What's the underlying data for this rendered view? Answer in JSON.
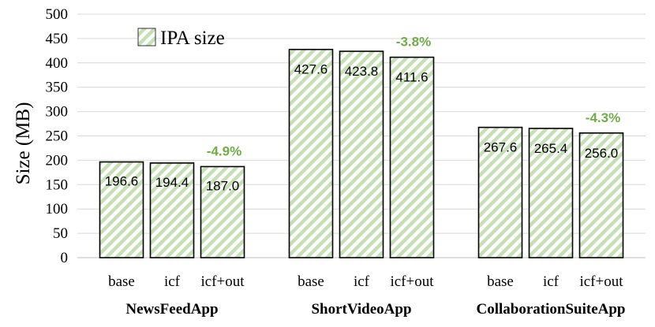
{
  "chart_data": {
    "type": "bar",
    "title": "",
    "xlabel": "",
    "ylabel": "Size (MB)",
    "ylim": [
      0,
      500
    ],
    "yticks": [
      0,
      50,
      100,
      150,
      200,
      250,
      300,
      350,
      400,
      450,
      500
    ],
    "grid": "horizontal",
    "legend": {
      "position": "top-left",
      "entries": [
        "IPA size"
      ]
    },
    "colors": {
      "bar_fill": "#ffffff",
      "hatch": "#c5e0b4",
      "bar_stroke": "#000000",
      "annotation": "#70ad47",
      "grid": "#d9d9d9"
    },
    "groups": [
      {
        "name": "NewsFeedApp",
        "bars": [
          {
            "category": "base",
            "value": 196.6,
            "label": "196.6"
          },
          {
            "category": "icf",
            "value": 194.4,
            "label": "194.4"
          },
          {
            "category": "icf+out",
            "value": 187.0,
            "label": "187.0",
            "annotation": "-4.9%"
          }
        ]
      },
      {
        "name": "ShortVideoApp",
        "bars": [
          {
            "category": "base",
            "value": 427.6,
            "label": "427.6"
          },
          {
            "category": "icf",
            "value": 423.8,
            "label": "423.8"
          },
          {
            "category": "icf+out",
            "value": 411.6,
            "label": "411.6",
            "annotation": "-3.8%"
          }
        ]
      },
      {
        "name": "CollaborationSuiteApp",
        "bars": [
          {
            "category": "base",
            "value": 267.6,
            "label": "267.6"
          },
          {
            "category": "icf",
            "value": 265.4,
            "label": "265.4"
          },
          {
            "category": "icf+out",
            "value": 256.0,
            "label": "256.0",
            "annotation": "-4.3%"
          }
        ]
      }
    ]
  }
}
